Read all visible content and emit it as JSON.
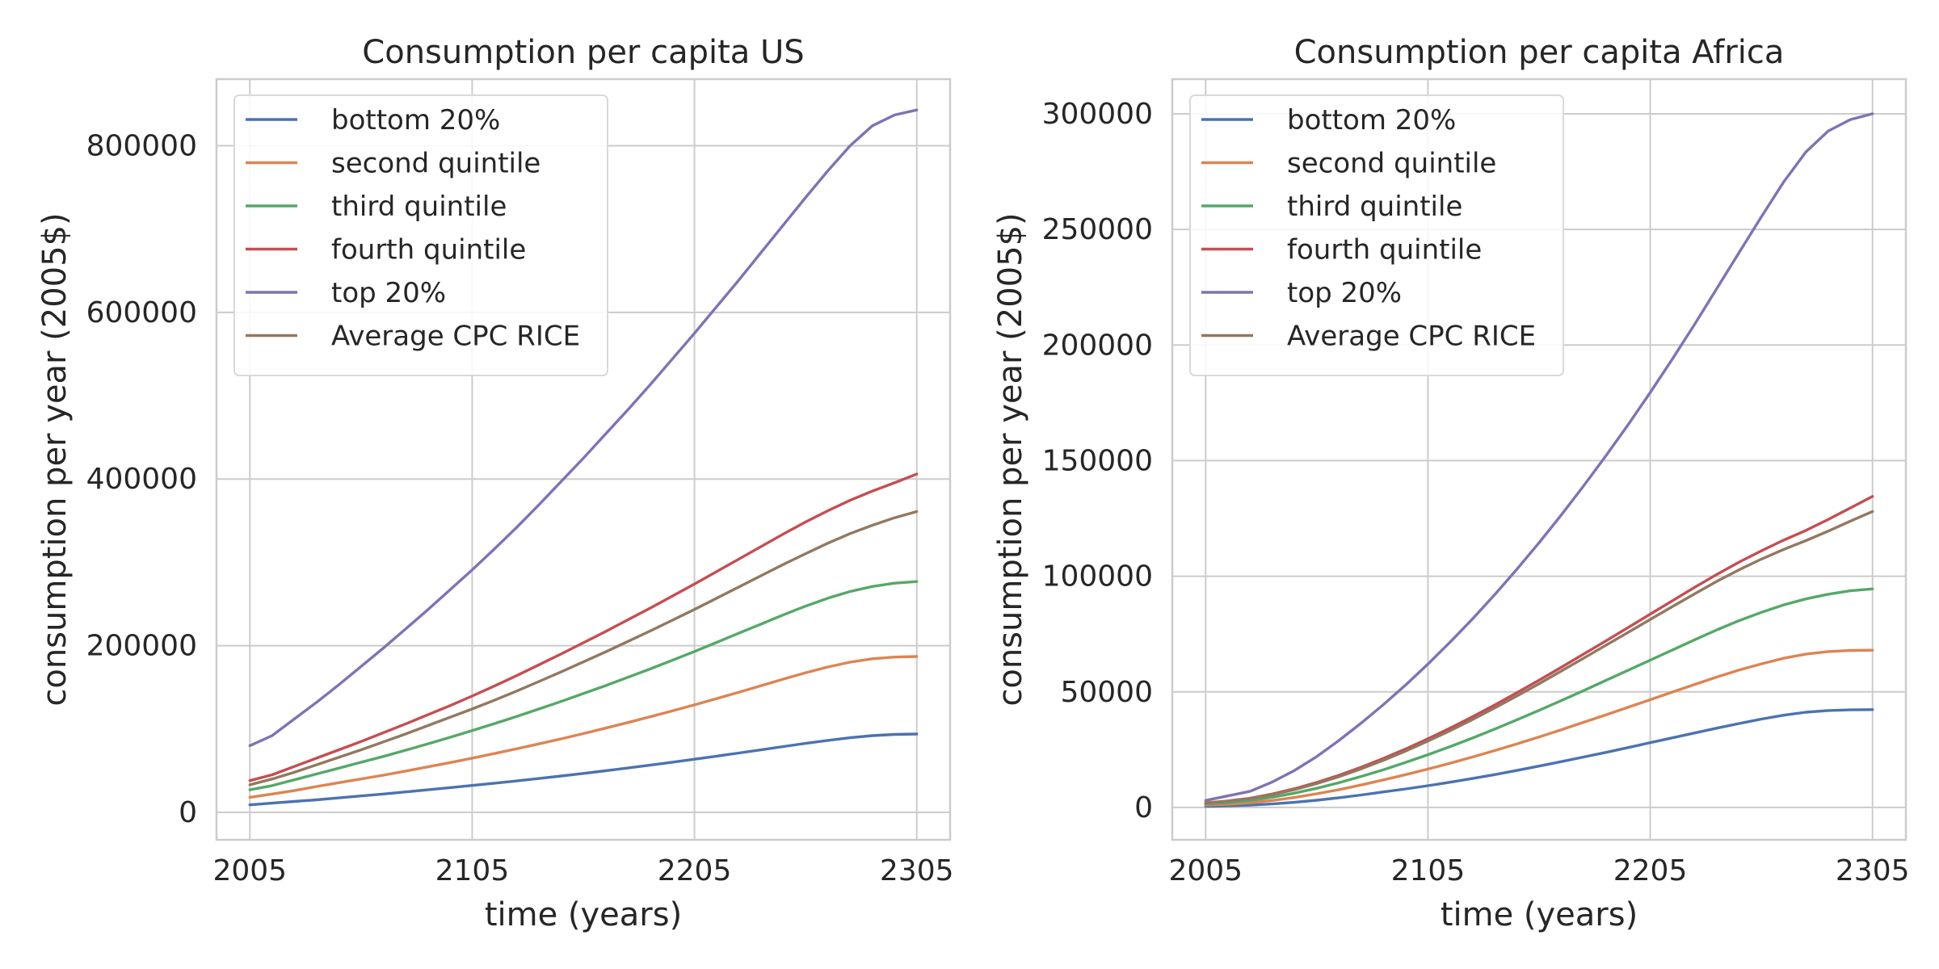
{
  "chart_data": [
    {
      "type": "line",
      "title": "Consumption per capita US",
      "xlabel": "time (years)",
      "ylabel": "consumption per year (2005$)",
      "xlim": [
        1990,
        2320
      ],
      "ylim": [
        -33000,
        880000
      ],
      "xticks": [
        2005,
        2105,
        2205,
        2305
      ],
      "yticks": [
        0,
        200000,
        400000,
        600000,
        800000
      ],
      "grid": true,
      "legend": "top-left",
      "x": [
        2005,
        2015,
        2025,
        2035,
        2045,
        2055,
        2065,
        2075,
        2085,
        2095,
        2105,
        2115,
        2125,
        2135,
        2145,
        2155,
        2165,
        2175,
        2185,
        2195,
        2205,
        2215,
        2225,
        2235,
        2245,
        2255,
        2265,
        2275,
        2285,
        2295,
        2305
      ],
      "series": [
        {
          "name": "bottom 20%",
          "color": "#4c72b0",
          "values": [
            9000,
            11000,
            13000,
            15000,
            17300,
            19600,
            22000,
            24500,
            27000,
            29600,
            32200,
            34900,
            37700,
            40600,
            43600,
            46700,
            49900,
            53200,
            56600,
            60100,
            63700,
            67400,
            71200,
            75000,
            78900,
            82700,
            86300,
            89500,
            92000,
            93500,
            94000
          ]
        },
        {
          "name": "second quintile",
          "color": "#dd8452",
          "values": [
            18000,
            22000,
            26000,
            31000,
            35500,
            40000,
            44500,
            49500,
            54500,
            59700,
            65000,
            70500,
            76200,
            82100,
            88200,
            94500,
            101000,
            107700,
            114600,
            121700,
            129000,
            136500,
            144200,
            152000,
            159900,
            167500,
            174400,
            180200,
            184300,
            186300,
            187000
          ]
        },
        {
          "name": "third quintile",
          "color": "#55a868",
          "values": [
            27000,
            32000,
            39000,
            46000,
            53000,
            60000,
            67000,
            74500,
            82000,
            90000,
            98000,
            106500,
            115000,
            124000,
            133000,
            142500,
            152000,
            162000,
            172000,
            182500,
            193000,
            204000,
            215000,
            226000,
            237000,
            247500,
            257000,
            265000,
            271000,
            275000,
            277000
          ]
        },
        {
          "name": "fourth quintile",
          "color": "#c44e52",
          "values": [
            38000,
            45000,
            55000,
            65000,
            75000,
            85000,
            95500,
            106000,
            117000,
            128000,
            139500,
            151500,
            164000,
            177000,
            190000,
            203500,
            217000,
            231000,
            245000,
            259500,
            274000,
            289000,
            304000,
            319000,
            334000,
            348500,
            362000,
            374500,
            385500,
            395500,
            406000
          ]
        },
        {
          "name": "top 20%",
          "color": "#8172b3",
          "values": [
            80000,
            92000,
            112000,
            132000,
            153000,
            175000,
            197000,
            220000,
            243000,
            267000,
            291000,
            316000,
            342000,
            369000,
            397000,
            425000,
            454000,
            483000,
            513000,
            544000,
            575000,
            607000,
            639000,
            672000,
            705000,
            738000,
            770000,
            800000,
            824000,
            837000,
            843000
          ]
        },
        {
          "name": "Average CPC RICE",
          "color": "#937860",
          "values": [
            33000,
            40000,
            48000,
            57000,
            66000,
            75000,
            84500,
            94000,
            104000,
            114000,
            124000,
            134500,
            145500,
            157000,
            168500,
            180500,
            192500,
            205000,
            217500,
            230500,
            243500,
            257000,
            270500,
            284000,
            297500,
            310500,
            323000,
            334500,
            344500,
            353500,
            361000
          ]
        }
      ]
    },
    {
      "type": "line",
      "title": "Consumption per capita Africa",
      "xlabel": "time (years)",
      "ylabel": "consumption per year (2005$)",
      "xlim": [
        1990,
        2320
      ],
      "ylim": [
        -14000,
        315000
      ],
      "xticks": [
        2005,
        2105,
        2205,
        2305
      ],
      "yticks": [
        0,
        50000,
        100000,
        150000,
        200000,
        250000,
        300000
      ],
      "grid": true,
      "legend": "top-left",
      "x": [
        2005,
        2015,
        2025,
        2035,
        2045,
        2055,
        2065,
        2075,
        2085,
        2095,
        2105,
        2115,
        2125,
        2135,
        2145,
        2155,
        2165,
        2175,
        2185,
        2195,
        2205,
        2215,
        2225,
        2235,
        2245,
        2255,
        2265,
        2275,
        2285,
        2295,
        2305
      ],
      "series": [
        {
          "name": "bottom 20%",
          "color": "#4c72b0",
          "values": [
            500,
            700,
            1000,
            1500,
            2200,
            3100,
            4200,
            5400,
            6700,
            8000,
            9400,
            10900,
            12500,
            14200,
            16000,
            17900,
            19800,
            21800,
            23800,
            25900,
            28000,
            30100,
            32200,
            34300,
            36300,
            38200,
            39900,
            41200,
            41900,
            42200,
            42300
          ]
        },
        {
          "name": "second quintile",
          "color": "#dd8452",
          "values": [
            1000,
            1400,
            2000,
            3000,
            4300,
            5900,
            7700,
            9700,
            11900,
            14200,
            16600,
            19100,
            21800,
            24600,
            27500,
            30500,
            33600,
            36800,
            40000,
            43300,
            46600,
            49900,
            53200,
            56400,
            59400,
            62100,
            64500,
            66300,
            67400,
            67900,
            68000
          ]
        },
        {
          "name": "third quintile",
          "color": "#55a868",
          "values": [
            1500,
            2100,
            3000,
            4400,
            6200,
            8300,
            10700,
            13400,
            16300,
            19500,
            22800,
            26300,
            30000,
            33900,
            37900,
            42000,
            46200,
            50500,
            54900,
            59300,
            63700,
            68100,
            72500,
            76800,
            80800,
            84400,
            87600,
            90200,
            92200,
            93700,
            94500
          ]
        },
        {
          "name": "fourth quintile",
          "color": "#c44e52",
          "values": [
            2000,
            2800,
            4000,
            5800,
            8100,
            10800,
            13900,
            17400,
            21200,
            25300,
            29700,
            34300,
            39200,
            44300,
            49600,
            55000,
            60600,
            66300,
            72000,
            77800,
            83600,
            89400,
            95200,
            100800,
            106100,
            111000,
            115600,
            119800,
            124500,
            129500,
            134500
          ]
        },
        {
          "name": "top 20%",
          "color": "#8172b3",
          "values": [
            3000,
            5000,
            7000,
            11000,
            16000,
            22000,
            29000,
            36500,
            44500,
            53000,
            62000,
            71500,
            81500,
            92000,
            103000,
            114500,
            126500,
            139000,
            152000,
            165500,
            179500,
            194000,
            209000,
            224500,
            240000,
            255500,
            270500,
            283500,
            292500,
            297500,
            300000
          ]
        },
        {
          "name": "Average CPC RICE",
          "color": "#937860",
          "values": [
            1900,
            2700,
            3800,
            5500,
            7700,
            10300,
            13300,
            16700,
            20400,
            24400,
            28700,
            33200,
            38000,
            43000,
            48200,
            53500,
            59000,
            64500,
            70100,
            75700,
            81300,
            86900,
            92400,
            97800,
            102800,
            107400,
            111600,
            115400,
            119500,
            123800,
            128000
          ]
        }
      ]
    }
  ]
}
